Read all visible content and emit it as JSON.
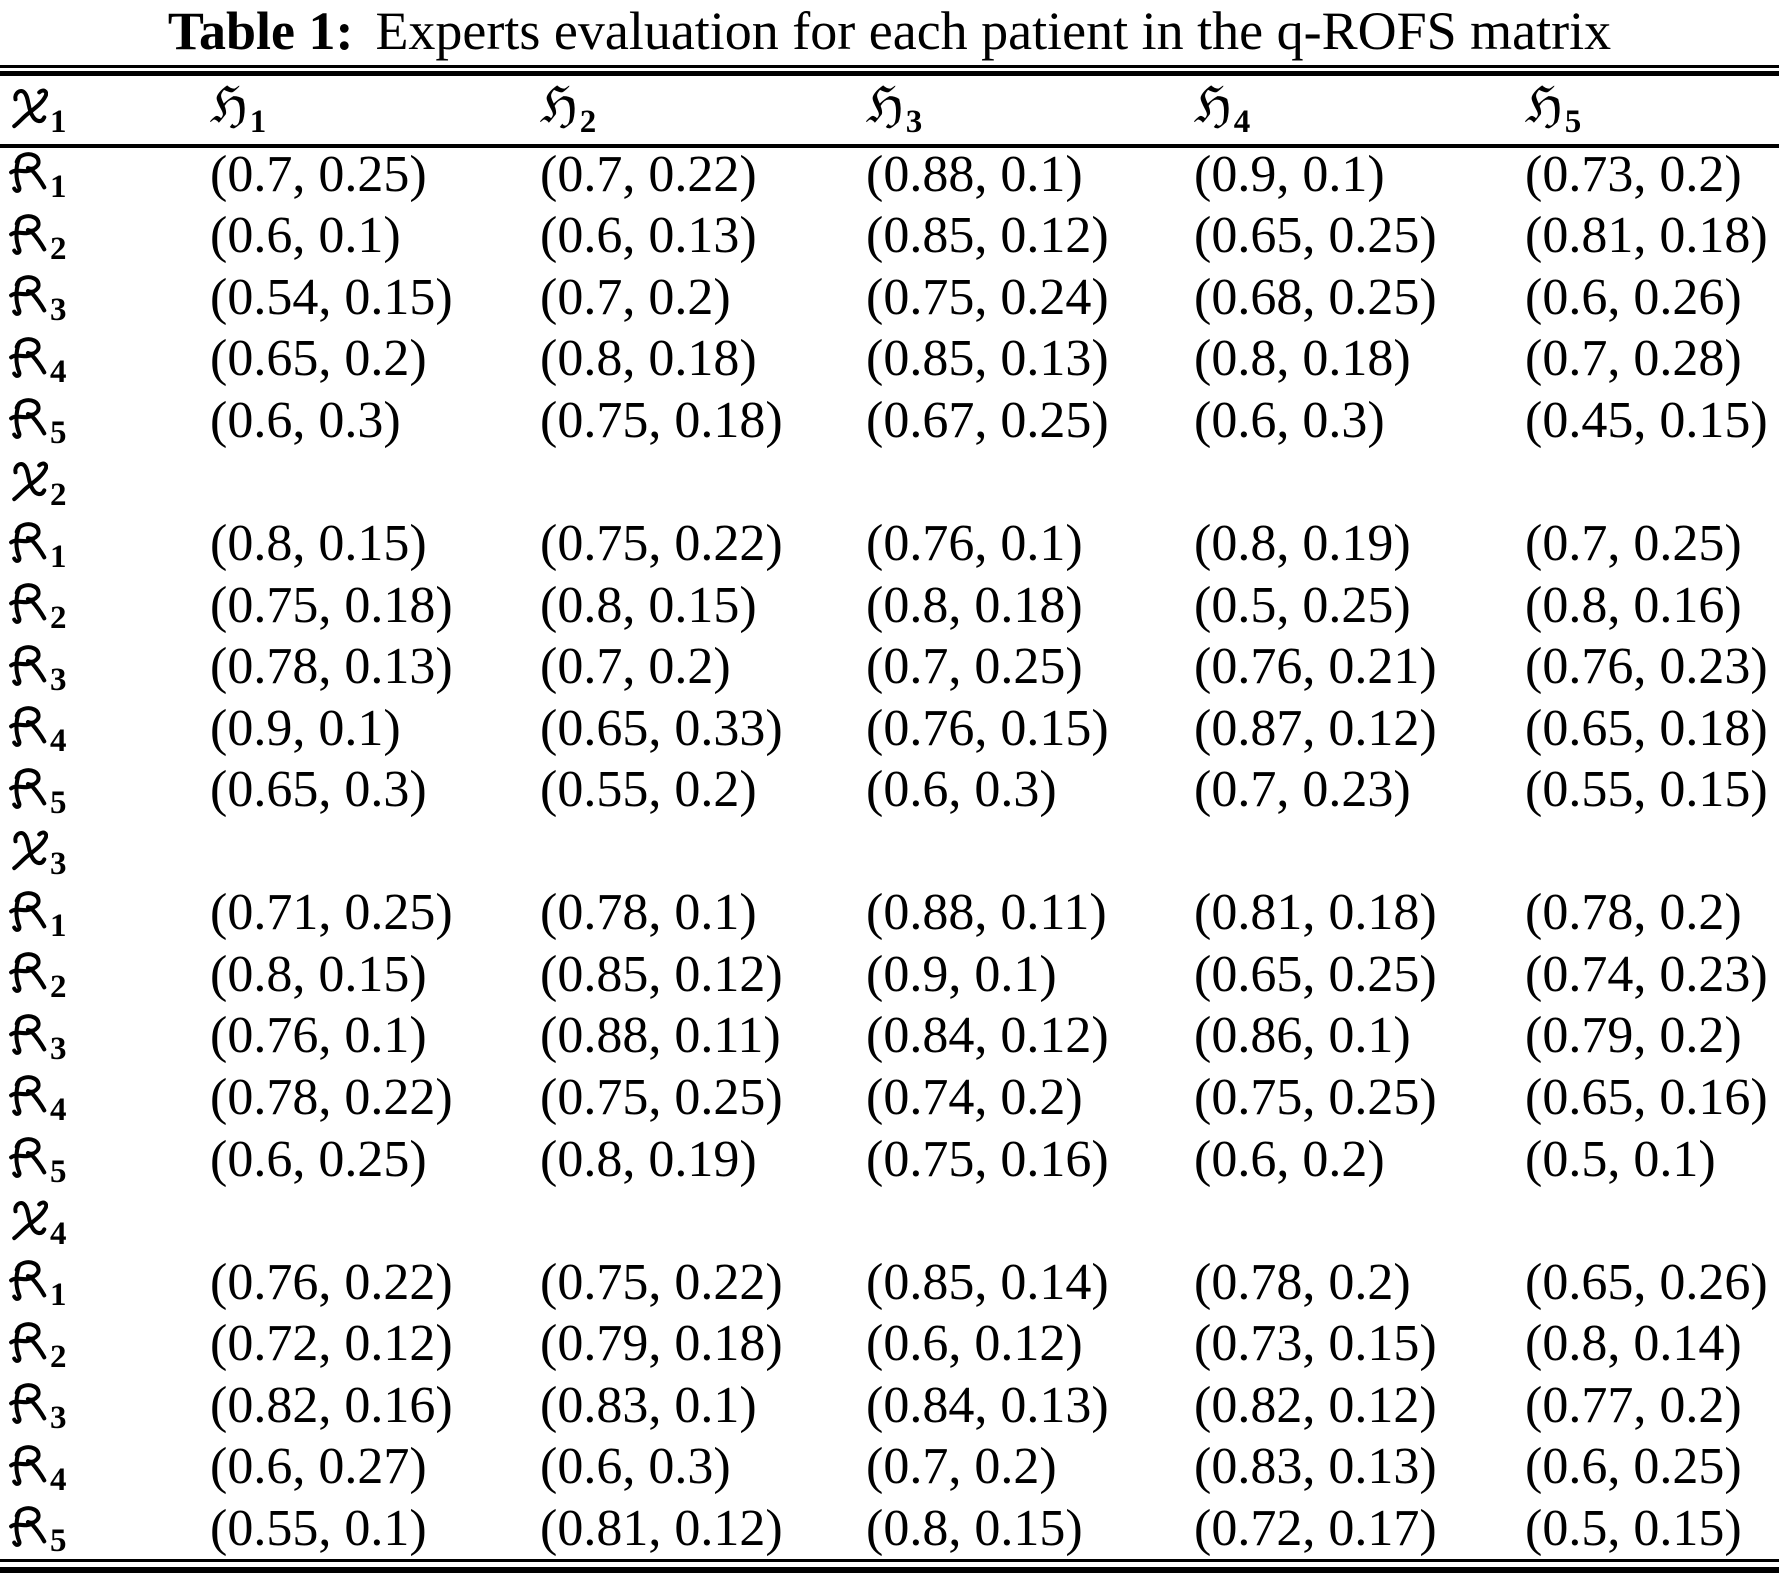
{
  "page": {
    "background": "#ffffff",
    "text_color": "#000000"
  },
  "caption": {
    "label": "Table 1:",
    "text": "Experts evaluation for each patient in the q-ROFS matrix"
  },
  "table": {
    "header": {
      "corner": {
        "symbol": "𝔛",
        "sub": "1"
      },
      "columns": [
        {
          "symbol": "ℌ",
          "sub": "1"
        },
        {
          "symbol": "ℌ",
          "sub": "2"
        },
        {
          "symbol": "ℌ",
          "sub": "3"
        },
        {
          "symbol": "ℌ",
          "sub": "4"
        },
        {
          "symbol": "ℌ",
          "sub": "5"
        }
      ]
    },
    "sections": [
      {
        "symbol": "𝔛",
        "sub": "1",
        "label_in_header": true,
        "rows": [
          {
            "symbol": "𝔎",
            "sub": "1",
            "cells": [
              "(0.7, 0.25)",
              "(0.7, 0.22)",
              "(0.88, 0.1)",
              "(0.9, 0.1)",
              "(0.73, 0.2)"
            ]
          },
          {
            "symbol": "𝔎",
            "sub": "2",
            "cells": [
              "(0.6, 0.1)",
              "(0.6, 0.13)",
              "(0.85, 0.12)",
              "(0.65, 0.25)",
              "(0.81, 0.18)"
            ]
          },
          {
            "symbol": "𝔎",
            "sub": "3",
            "cells": [
              "(0.54, 0.15)",
              "(0.7, 0.2)",
              "(0.75, 0.24)",
              "(0.68, 0.25)",
              "(0.6, 0.26)"
            ]
          },
          {
            "symbol": "𝔎",
            "sub": "4",
            "cells": [
              "(0.65, 0.2)",
              "(0.8, 0.18)",
              "(0.85, 0.13)",
              "(0.8, 0.18)",
              "(0.7, 0.28)"
            ]
          },
          {
            "symbol": "𝔎",
            "sub": "5",
            "cells": [
              "(0.6, 0.3)",
              "(0.75, 0.18)",
              "(0.67, 0.25)",
              "(0.6, 0.3)",
              "(0.45, 0.15)"
            ]
          }
        ]
      },
      {
        "symbol": "𝔛",
        "sub": "2",
        "label_in_header": false,
        "rows": [
          {
            "symbol": "𝔎",
            "sub": "1",
            "cells": [
              "(0.8, 0.15)",
              "(0.75, 0.22)",
              "(0.76, 0.1)",
              "(0.8, 0.19)",
              "(0.7, 0.25)"
            ]
          },
          {
            "symbol": "𝔎",
            "sub": "2",
            "cells": [
              "(0.75, 0.18)",
              "(0.8, 0.15)",
              "(0.8, 0.18)",
              "(0.5, 0.25)",
              "(0.8, 0.16)"
            ]
          },
          {
            "symbol": "𝔎",
            "sub": "3",
            "cells": [
              "(0.78, 0.13)",
              "(0.7, 0.2)",
              "(0.7, 0.25)",
              "(0.76, 0.21)",
              "(0.76, 0.23)"
            ]
          },
          {
            "symbol": "𝔎",
            "sub": "4",
            "cells": [
              "(0.9, 0.1)",
              "(0.65, 0.33)",
              "(0.76, 0.15)",
              "(0.87, 0.12)",
              "(0.65, 0.18)"
            ]
          },
          {
            "symbol": "𝔎",
            "sub": "5",
            "cells": [
              "(0.65, 0.3)",
              "(0.55, 0.2)",
              "(0.6, 0.3)",
              "(0.7, 0.23)",
              "(0.55, 0.15)"
            ]
          }
        ]
      },
      {
        "symbol": "𝔛",
        "sub": "3",
        "label_in_header": false,
        "rows": [
          {
            "symbol": "𝔎",
            "sub": "1",
            "cells": [
              "(0.71, 0.25)",
              "(0.78, 0.1)",
              "(0.88, 0.11)",
              "(0.81, 0.18)",
              "(0.78, 0.2)"
            ]
          },
          {
            "symbol": "𝔎",
            "sub": "2",
            "cells": [
              "(0.8, 0.15)",
              "(0.85, 0.12)",
              "(0.9, 0.1)",
              "(0.65, 0.25)",
              "(0.74, 0.23)"
            ]
          },
          {
            "symbol": "𝔎",
            "sub": "3",
            "cells": [
              "(0.76, 0.1)",
              "(0.88, 0.11)",
              "(0.84, 0.12)",
              "(0.86, 0.1)",
              "(0.79, 0.2)"
            ]
          },
          {
            "symbol": "𝔎",
            "sub": "4",
            "cells": [
              "(0.78, 0.22)",
              "(0.75, 0.25)",
              "(0.74, 0.2)",
              "(0.75, 0.25)",
              "(0.65, 0.16)"
            ]
          },
          {
            "symbol": "𝔎",
            "sub": "5",
            "cells": [
              "(0.6, 0.25)",
              "(0.8, 0.19)",
              "(0.75, 0.16)",
              "(0.6, 0.2)",
              "(0.5, 0.1)"
            ]
          }
        ]
      },
      {
        "symbol": "𝔛",
        "sub": "4",
        "label_in_header": false,
        "rows": [
          {
            "symbol": "𝔎",
            "sub": "1",
            "cells": [
              "(0.76, 0.22)",
              "(0.75, 0.22)",
              "(0.85, 0.14)",
              "(0.78, 0.2)",
              "(0.65, 0.26)"
            ]
          },
          {
            "symbol": "𝔎",
            "sub": "2",
            "cells": [
              "(0.72, 0.12)",
              "(0.79, 0.18)",
              "(0.6, 0.12)",
              "(0.73, 0.15)",
              "(0.8, 0.14)"
            ]
          },
          {
            "symbol": "𝔎",
            "sub": "3",
            "cells": [
              "(0.82, 0.16)",
              "(0.83, 0.1)",
              "(0.84, 0.13)",
              "(0.82, 0.12)",
              "(0.77, 0.2)"
            ]
          },
          {
            "symbol": "𝔎",
            "sub": "4",
            "cells": [
              "(0.6, 0.27)",
              "(0.6, 0.3)",
              "(0.7, 0.2)",
              "(0.83, 0.13)",
              "(0.6, 0.25)"
            ]
          },
          {
            "symbol": "𝔎",
            "sub": "5",
            "cells": [
              "(0.55, 0.1)",
              "(0.81, 0.12)",
              "(0.8, 0.15)",
              "(0.72, 0.17)",
              "(0.5, 0.15)"
            ]
          }
        ]
      }
    ]
  }
}
